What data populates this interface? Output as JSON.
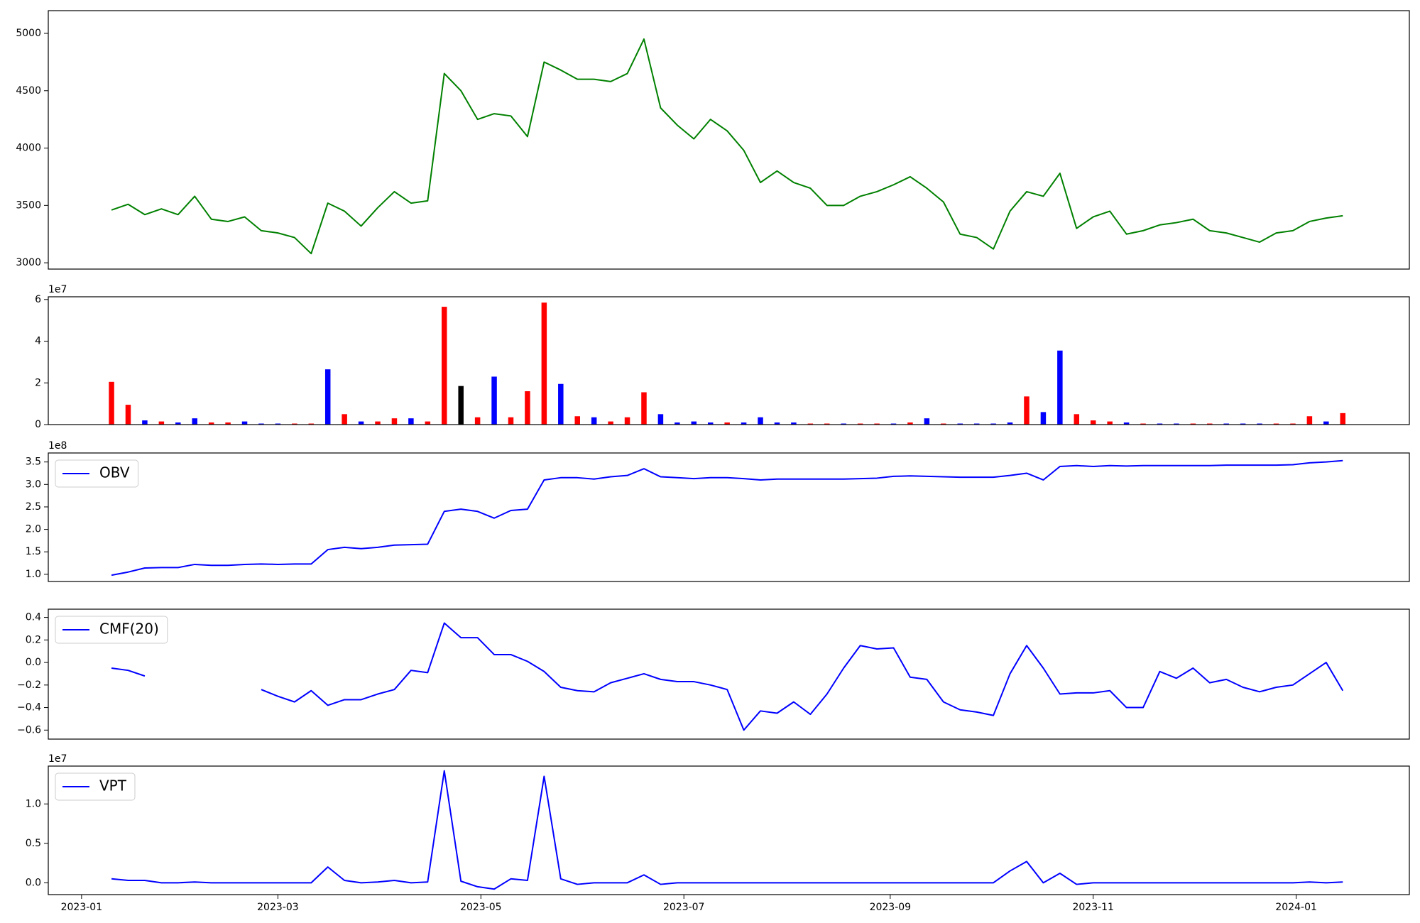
{
  "chart_data": [
    {
      "type": "line",
      "color": "green",
      "x": [
        19367,
        19372,
        19377,
        19382,
        19387,
        19392,
        19397,
        19402,
        19407,
        19412,
        19417,
        19422,
        19427,
        19432,
        19437,
        19442,
        19447,
        19452,
        19457,
        19462,
        19467,
        19472,
        19477,
        19482,
        19487,
        19492,
        19497,
        19502,
        19507,
        19512,
        19517,
        19522,
        19527,
        19532,
        19537,
        19542,
        19547,
        19552,
        19557,
        19562,
        19567,
        19572,
        19577,
        19582,
        19587,
        19592,
        19597,
        19602,
        19607,
        19612,
        19617,
        19622,
        19627,
        19632,
        19637,
        19642,
        19647,
        19652,
        19657,
        19662,
        19667,
        19672,
        19677,
        19682,
        19687,
        19692,
        19697,
        19702,
        19707,
        19712,
        19717,
        19722,
        19727,
        19732,
        19737
      ],
      "values": [
        3460,
        3510,
        3420,
        3470,
        3420,
        3580,
        3380,
        3360,
        3400,
        3280,
        3260,
        3220,
        3080,
        3520,
        3450,
        3320,
        3480,
        3620,
        3520,
        3540,
        4650,
        4500,
        4250,
        4300,
        4280,
        4100,
        4750,
        4680,
        4600,
        4600,
        4580,
        4650,
        4950,
        4350,
        4200,
        4080,
        4250,
        4150,
        3980,
        3700,
        3800,
        3700,
        3650,
        3500,
        3500,
        3580,
        3620,
        3680,
        3750,
        3650,
        3530,
        3250,
        3220,
        3120,
        3450,
        3620,
        3580,
        3780,
        3300,
        3400,
        3450,
        3250,
        3280,
        3330,
        3350,
        3380,
        3280,
        3260,
        3220,
        3180,
        3260,
        3280,
        3360,
        3390,
        3410
      ],
      "xlim": [
        19348,
        19757
      ],
      "ylim": [
        2945,
        5198
      ],
      "yticks": [
        3000,
        3500,
        4000,
        4500,
        5000
      ]
    },
    {
      "type": "bar",
      "offset_label": "1e7",
      "x": [
        19367,
        19372,
        19377,
        19382,
        19387,
        19392,
        19397,
        19402,
        19407,
        19412,
        19417,
        19422,
        19427,
        19432,
        19437,
        19442,
        19447,
        19452,
        19457,
        19462,
        19467,
        19472,
        19477,
        19482,
        19487,
        19492,
        19497,
        19502,
        19507,
        19512,
        19517,
        19522,
        19527,
        19532,
        19537,
        19542,
        19547,
        19552,
        19557,
        19562,
        19567,
        19572,
        19577,
        19582,
        19587,
        19592,
        19597,
        19602,
        19607,
        19612,
        19617,
        19622,
        19627,
        19632,
        19637,
        19642,
        19647,
        19652,
        19657,
        19662,
        19667,
        19672,
        19677,
        19682,
        19687,
        19692,
        19697,
        19702,
        19707,
        19712,
        19717,
        19722,
        19727,
        19732,
        19737
      ],
      "values": [
        2.05,
        0.95,
        0.2,
        0.15,
        0.1,
        0.3,
        0.1,
        0.1,
        0.15,
        0.05,
        0.05,
        0.05,
        0.05,
        2.65,
        0.5,
        0.15,
        0.15,
        0.3,
        0.3,
        0.15,
        5.65,
        1.85,
        0.35,
        2.3,
        0.35,
        1.6,
        5.85,
        1.95,
        0.4,
        0.35,
        0.15,
        0.35,
        1.55,
        0.5,
        0.1,
        0.15,
        0.1,
        0.1,
        0.1,
        0.35,
        0.1,
        0.1,
        0.05,
        0.05,
        0.05,
        0.05,
        0.05,
        0.05,
        0.1,
        0.3,
        0.05,
        0.05,
        0.05,
        0.05,
        0.1,
        1.35,
        0.6,
        3.55,
        0.5,
        0.2,
        0.15,
        0.1,
        0.05,
        0.05,
        0.05,
        0.05,
        0.05,
        0.05,
        0.05,
        0.05,
        0.05,
        0.05,
        0.4,
        0.15,
        0.55
      ],
      "colors": [
        "red",
        "red",
        "blue",
        "red",
        "blue",
        "blue",
        "red",
        "red",
        "blue",
        "blue",
        "blue",
        "red",
        "red",
        "blue",
        "red",
        "blue",
        "red",
        "red",
        "blue",
        "red",
        "red",
        "black",
        "red",
        "blue",
        "red",
        "red",
        "red",
        "blue",
        "red",
        "blue",
        "red",
        "red",
        "red",
        "blue",
        "blue",
        "blue",
        "blue",
        "red",
        "blue",
        "blue",
        "blue",
        "blue",
        "red",
        "red",
        "blue",
        "red",
        "red",
        "blue",
        "red",
        "blue",
        "red",
        "blue",
        "blue",
        "blue",
        "blue",
        "red",
        "blue",
        "blue",
        "red",
        "red",
        "red",
        "blue",
        "red",
        "blue",
        "blue",
        "red",
        "red",
        "blue",
        "blue",
        "blue",
        "red",
        "red",
        "red",
        "blue",
        "red"
      ],
      "xlim": [
        19348,
        19757
      ],
      "ylim": [
        0,
        6.13
      ],
      "yticks": [
        0,
        2,
        4,
        6
      ]
    },
    {
      "type": "line",
      "offset_label": "1e8",
      "legend": "upper left",
      "x": [
        19367,
        19372,
        19377,
        19382,
        19387,
        19392,
        19397,
        19402,
        19407,
        19412,
        19417,
        19422,
        19427,
        19432,
        19437,
        19442,
        19447,
        19452,
        19457,
        19462,
        19467,
        19472,
        19477,
        19482,
        19487,
        19492,
        19497,
        19502,
        19507,
        19512,
        19517,
        19522,
        19527,
        19532,
        19537,
        19542,
        19547,
        19552,
        19557,
        19562,
        19567,
        19572,
        19577,
        19582,
        19587,
        19592,
        19597,
        19602,
        19607,
        19612,
        19617,
        19622,
        19627,
        19632,
        19637,
        19642,
        19647,
        19652,
        19657,
        19662,
        19667,
        19672,
        19677,
        19682,
        19687,
        19692,
        19697,
        19702,
        19707,
        19712,
        19717,
        19722,
        19727,
        19732,
        19737
      ],
      "series": [
        {
          "name": "OBV",
          "color": "blue",
          "values": [
            0.98,
            1.05,
            1.14,
            1.15,
            1.15,
            1.22,
            1.2,
            1.2,
            1.22,
            1.23,
            1.22,
            1.23,
            1.23,
            1.55,
            1.6,
            1.57,
            1.6,
            1.65,
            1.66,
            1.67,
            2.4,
            2.45,
            2.4,
            2.25,
            2.42,
            2.45,
            3.1,
            3.15,
            3.15,
            3.12,
            3.17,
            3.2,
            3.35,
            3.17,
            3.15,
            3.13,
            3.15,
            3.15,
            3.13,
            3.1,
            3.12,
            3.12,
            3.12,
            3.12,
            3.12,
            3.13,
            3.14,
            3.18,
            3.19,
            3.18,
            3.17,
            3.16,
            3.16,
            3.16,
            3.2,
            3.25,
            3.1,
            3.4,
            3.42,
            3.4,
            3.42,
            3.41,
            3.42,
            3.42,
            3.42,
            3.42,
            3.42,
            3.43,
            3.43,
            3.43,
            3.43,
            3.44,
            3.48,
            3.5,
            3.53
          ]
        }
      ],
      "xlim": [
        19348,
        19757
      ],
      "ylim": [
        0.84,
        3.7
      ],
      "yticks": [
        {
          "value": 1,
          "label": "1.0"
        },
        1.5,
        {
          "value": 2,
          "label": "2.0"
        },
        2.5,
        {
          "value": 3,
          "label": "3.0"
        },
        3.5
      ]
    },
    {
      "type": "line",
      "legend": "upper left",
      "x": [
        19367,
        19372,
        19377,
        19382,
        19387,
        19392,
        19397,
        19402,
        19407,
        19412,
        19417,
        19422,
        19427,
        19432,
        19437,
        19442,
        19447,
        19452,
        19457,
        19462,
        19467,
        19472,
        19477,
        19482,
        19487,
        19492,
        19497,
        19502,
        19507,
        19512,
        19517,
        19522,
        19527,
        19532,
        19537,
        19542,
        19547,
        19552,
        19557,
        19562,
        19567,
        19572,
        19577,
        19582,
        19587,
        19592,
        19597,
        19602,
        19607,
        19612,
        19617,
        19622,
        19627,
        19632,
        19637,
        19642,
        19647,
        19652,
        19657,
        19662,
        19667,
        19672,
        19677,
        19682,
        19687,
        19692,
        19697,
        19702,
        19707,
        19712,
        19717,
        19722,
        19727,
        19732,
        19737
      ],
      "series": [
        {
          "name": "CMF(20)",
          "color": "blue",
          "values": [
            -0.05,
            -0.07,
            -0.12,
            null,
            null,
            null,
            null,
            null,
            null,
            -0.24,
            -0.3,
            -0.35,
            -0.25,
            -0.38,
            -0.33,
            -0.33,
            -0.28,
            -0.24,
            -0.07,
            -0.09,
            0.35,
            0.22,
            0.22,
            0.07,
            0.07,
            0.01,
            -0.08,
            -0.22,
            -0.25,
            -0.26,
            -0.18,
            -0.14,
            -0.1,
            -0.15,
            -0.17,
            -0.17,
            -0.2,
            -0.24,
            -0.6,
            -0.43,
            -0.45,
            -0.35,
            -0.46,
            -0.28,
            -0.05,
            0.15,
            0.12,
            0.13,
            -0.13,
            -0.15,
            -0.35,
            -0.42,
            -0.44,
            -0.47,
            -0.1,
            0.15,
            -0.05,
            -0.28,
            -0.27,
            -0.27,
            -0.25,
            -0.4,
            -0.4,
            -0.08,
            -0.14,
            -0.05,
            -0.18,
            -0.15,
            -0.22,
            -0.26,
            -0.22,
            -0.2,
            -0.1,
            0.0,
            -0.25
          ]
        }
      ],
      "xlim": [
        19348,
        19757
      ],
      "ylim": [
        -0.68,
        0.473
      ],
      "yticks": [
        {
          "value": -0.6,
          "label": "−0.6"
        },
        {
          "value": -0.4,
          "label": "−0.4"
        },
        {
          "value": -0.2,
          "label": "−0.2"
        },
        {
          "value": 0,
          "label": "0.0"
        },
        0.2,
        0.4
      ]
    },
    {
      "type": "line",
      "offset_label": "1e7",
      "legend": "upper left",
      "x": [
        19367,
        19372,
        19377,
        19382,
        19387,
        19392,
        19397,
        19402,
        19407,
        19412,
        19417,
        19422,
        19427,
        19432,
        19437,
        19442,
        19447,
        19452,
        19457,
        19462,
        19467,
        19472,
        19477,
        19482,
        19487,
        19492,
        19497,
        19502,
        19507,
        19512,
        19517,
        19522,
        19527,
        19532,
        19537,
        19542,
        19547,
        19552,
        19557,
        19562,
        19567,
        19572,
        19577,
        19582,
        19587,
        19592,
        19597,
        19602,
        19607,
        19612,
        19617,
        19622,
        19627,
        19632,
        19637,
        19642,
        19647,
        19652,
        19657,
        19662,
        19667,
        19672,
        19677,
        19682,
        19687,
        19692,
        19697,
        19702,
        19707,
        19712,
        19717,
        19722,
        19727,
        19732,
        19737
      ],
      "series": [
        {
          "name": "VPT",
          "color": "blue",
          "values": [
            0.05,
            0.03,
            0.03,
            0,
            0,
            0.01,
            0,
            0,
            0,
            0,
            0,
            0,
            0,
            0.2,
            0.03,
            0,
            0.01,
            0.03,
            0,
            0.01,
            1.42,
            0.02,
            -0.05,
            -0.08,
            0.05,
            0.03,
            1.35,
            0.05,
            -0.02,
            0,
            0,
            0,
            0.1,
            -0.02,
            0,
            0,
            0,
            0,
            0,
            0,
            0,
            0,
            0,
            0,
            0,
            0,
            0,
            0,
            0,
            0,
            0,
            0,
            0,
            0,
            0.15,
            0.27,
            0,
            0.12,
            -0.02,
            0,
            0,
            0,
            0,
            0,
            0,
            0,
            0,
            0,
            0,
            0,
            0,
            0,
            0.01,
            0,
            0.01
          ]
        }
      ],
      "xlim": [
        19348,
        19757
      ],
      "ylim": [
        -0.15,
        1.48
      ],
      "yticks": [
        {
          "value": 0,
          "label": "0.0"
        },
        0.5,
        {
          "value": 1,
          "label": "1.0"
        }
      ],
      "xticks": [
        {
          "value": 19358,
          "label": "2023-01"
        },
        {
          "value": 19417,
          "label": "2023-03"
        },
        {
          "value": 19478,
          "label": "2023-05"
        },
        {
          "value": 19539,
          "label": "2023-07"
        },
        {
          "value": 19601,
          "label": "2023-09"
        },
        {
          "value": 19662,
          "label": "2023-11"
        },
        {
          "value": 19723,
          "label": "2024-01"
        }
      ]
    }
  ]
}
